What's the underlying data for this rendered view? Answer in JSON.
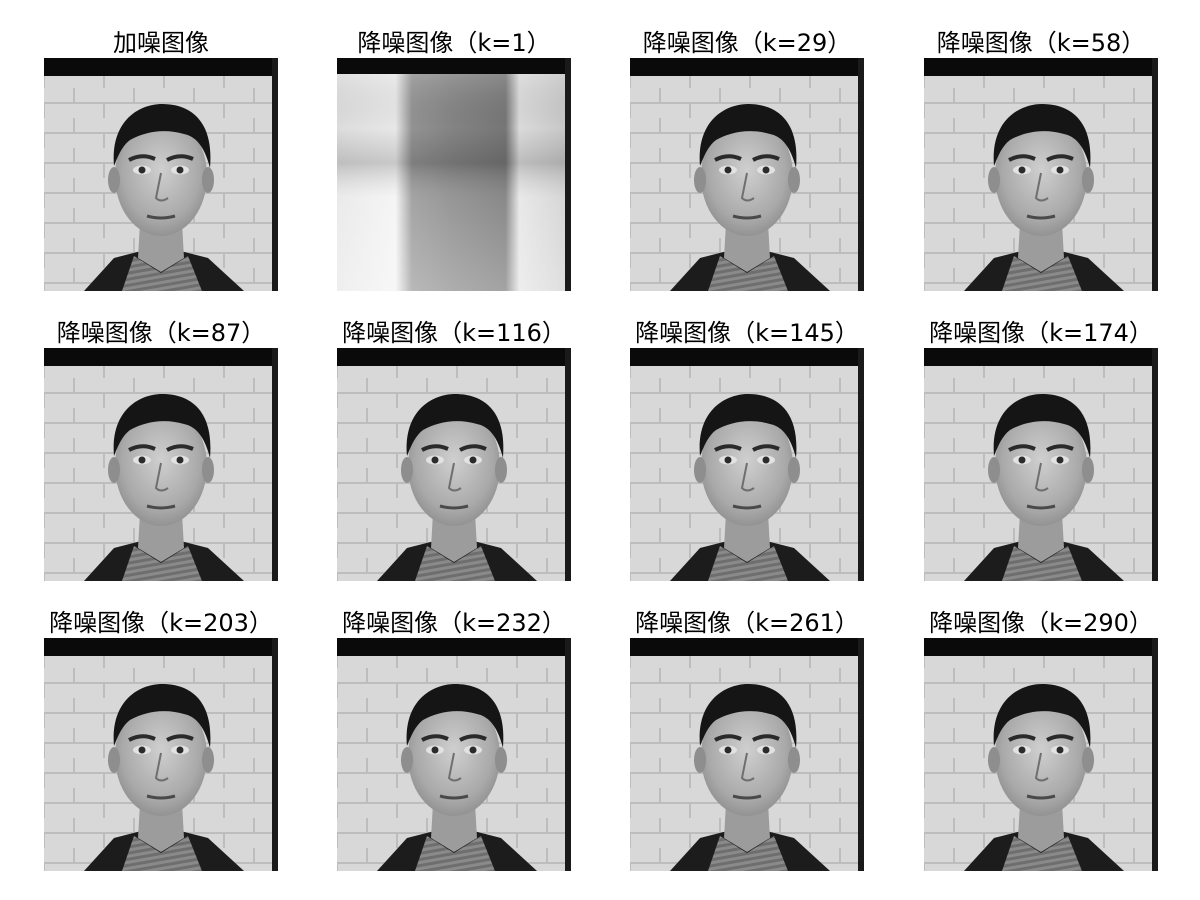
{
  "panels": [
    {
      "title": "加噪图像",
      "kind": "face"
    },
    {
      "title": "降噪图像（k=1）",
      "kind": "blur"
    },
    {
      "title": "降噪图像（k=29）",
      "kind": "face"
    },
    {
      "title": "降噪图像（k=58）",
      "kind": "face"
    },
    {
      "title": "降噪图像（k=87）",
      "kind": "face"
    },
    {
      "title": "降噪图像（k=116）",
      "kind": "face"
    },
    {
      "title": "降噪图像（k=145）",
      "kind": "face"
    },
    {
      "title": "降噪图像（k=174）",
      "kind": "face"
    },
    {
      "title": "降噪图像（k=203）",
      "kind": "face"
    },
    {
      "title": "降噪图像（k=232）",
      "kind": "face"
    },
    {
      "title": "降噪图像（k=261）",
      "kind": "face"
    },
    {
      "title": "降噪图像（k=290）",
      "kind": "face"
    }
  ]
}
